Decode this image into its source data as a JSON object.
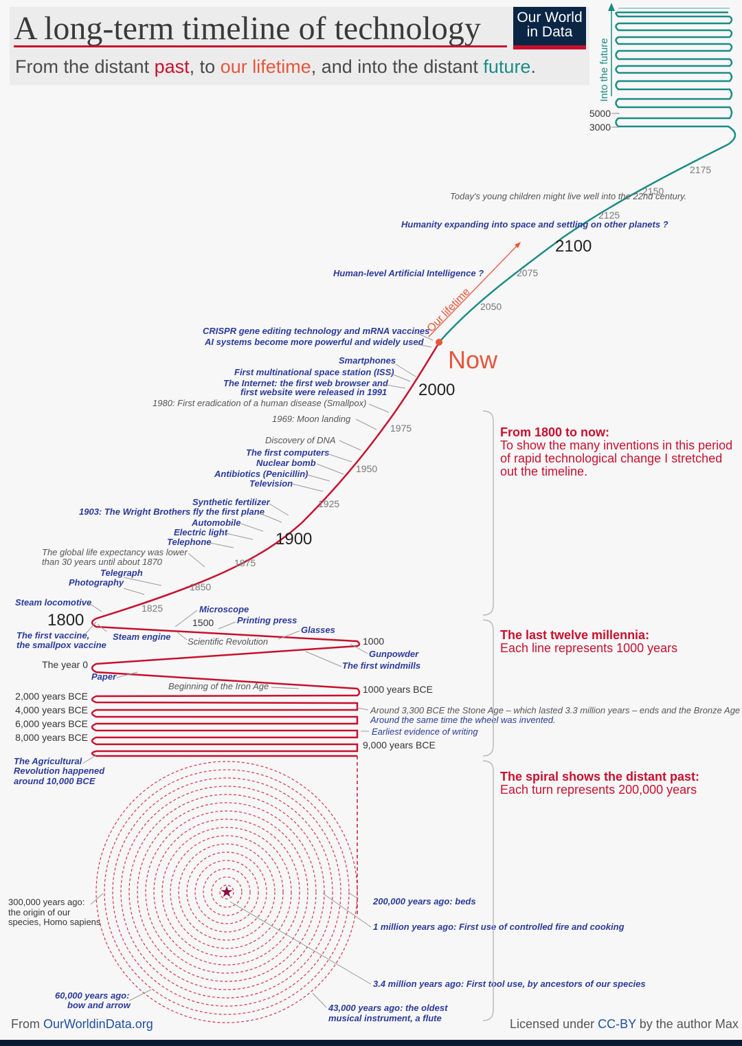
{
  "header": {
    "title": "A long-term timeline of technology",
    "subtitle_parts": [
      "From the distant ",
      "past",
      ", to ",
      "our lifetime",
      ", and into the distant ",
      "future",
      "."
    ],
    "logo_line1": "Our World",
    "logo_line2": "in Data"
  },
  "colors": {
    "past": "#c8102e",
    "lifetime": "#e8553a",
    "future": "#1a8c85",
    "invention": "#2a3a9a",
    "navy": "#0b2545"
  },
  "chart_data": {
    "type": "line",
    "title": "A long-term timeline of technology",
    "future_axis_label": "Into the future",
    "now_label": "Now",
    "lifetime_label": "Our lifetime",
    "year_ticks": [
      {
        "label": "1825"
      },
      {
        "label": "1850"
      },
      {
        "label": "1875"
      },
      {
        "label": "1900"
      },
      {
        "label": "1925"
      },
      {
        "label": "1950"
      },
      {
        "label": "1975"
      },
      {
        "label": "2000"
      },
      {
        "label": "2050"
      },
      {
        "label": "2075"
      },
      {
        "label": "2100"
      },
      {
        "label": "2125"
      },
      {
        "label": "2150"
      },
      {
        "label": "2175"
      }
    ],
    "millennia_ticks": [
      {
        "label": "1800"
      },
      {
        "label": "1500"
      },
      {
        "label": "1000"
      },
      {
        "label": "The year 0"
      },
      {
        "label": "1000 years BCE"
      },
      {
        "label": "2,000 years BCE"
      },
      {
        "label": "4,000 years BCE"
      },
      {
        "label": "6,000 years BCE"
      },
      {
        "label": "8,000 years BCE"
      },
      {
        "label": "9,000 years BCE"
      }
    ],
    "future_ticks": [
      {
        "label": "5000"
      },
      {
        "label": "3000"
      }
    ],
    "events": [
      {
        "text": "Human-level Artificial Intelligence ?"
      },
      {
        "text": "Humanity expanding into space and settling on other planets ?"
      },
      {
        "text": "Today's young children might live well into the 22nd century."
      },
      {
        "text": "CRISPR gene editing technology and mRNA vaccines"
      },
      {
        "text": "AI systems become more powerful and widely used"
      },
      {
        "text": "Smartphones"
      },
      {
        "text": "First multinational space station (ISS)"
      },
      {
        "text": "The Internet: the first web browser and"
      },
      {
        "text": "first website were released in 1991"
      },
      {
        "text": "1980: First eradication of a human disease (Smallpox)"
      },
      {
        "text": "1969: Moon landing"
      },
      {
        "text": "Discovery of DNA"
      },
      {
        "text": "The first computers"
      },
      {
        "text": "Nuclear bomb"
      },
      {
        "text": "Antibiotics (Penicillin)"
      },
      {
        "text": "Television"
      },
      {
        "text": "Synthetic fertilizer"
      },
      {
        "text": "1903: The Wright Brothers fly the first plane"
      },
      {
        "text": "Automobile"
      },
      {
        "text": "Electric light"
      },
      {
        "text": "Telephone"
      },
      {
        "text": "The global life expectancy was lower"
      },
      {
        "text": "than 30 years until about 1870"
      },
      {
        "text": "Telegraph"
      },
      {
        "text": "Photography"
      },
      {
        "text": "Steam locomotive"
      },
      {
        "text": "The first vaccine,"
      },
      {
        "text": "the smallpox vaccine"
      },
      {
        "text": "Steam engine"
      },
      {
        "text": "Microscope"
      },
      {
        "text": "Printing press"
      },
      {
        "text": "Glasses"
      },
      {
        "text": "Scientific Revolution"
      },
      {
        "text": "Gunpowder"
      },
      {
        "text": "The first windmills"
      },
      {
        "text": "Paper"
      },
      {
        "text": "Beginning of the Iron Age"
      },
      {
        "text": "Around 3,300 BCE the Stone Age – which lasted 3.3 million years – ends and the Bronze Age"
      },
      {
        "text": "Around the same time the wheel was invented."
      },
      {
        "text": "Earliest evidence of writing"
      },
      {
        "text": "The Agricultural"
      },
      {
        "text": "Revolution happened"
      },
      {
        "text": "around 10,000 BCE"
      },
      {
        "text": "300,000 years ago:"
      },
      {
        "text": "the origin of our"
      },
      {
        "text": "species, Homo sapiens"
      },
      {
        "text": "200,000 years ago: beds"
      },
      {
        "text": "1 million years ago: First use of controlled fire and cooking"
      },
      {
        "text": "3.4 million years ago: First tool use, by ancestors of our species"
      },
      {
        "text": "60,000 years ago:"
      },
      {
        "text": "bow and arrow"
      },
      {
        "text": "43,000 years ago: the oldest"
      },
      {
        "text": "musical instrument, a flute"
      }
    ]
  },
  "annotations": {
    "period1_title": "From 1800 to now:",
    "period1_body": [
      "To show the many inventions in this period",
      "of rapid technological change I stretched",
      "out the timeline."
    ],
    "period2_title": "The last twelve millennia:",
    "period2_body": "Each line represents 1000 years",
    "period3_title": "The spiral shows the distant past:",
    "period3_body": "Each turn represents 200,000 years"
  },
  "footer": {
    "source_prefix": "From ",
    "source_link": "OurWorldinData.org",
    "license_prefix": "Licensed under ",
    "license_link": "CC-BY",
    "license_suffix": " by the author Max"
  }
}
